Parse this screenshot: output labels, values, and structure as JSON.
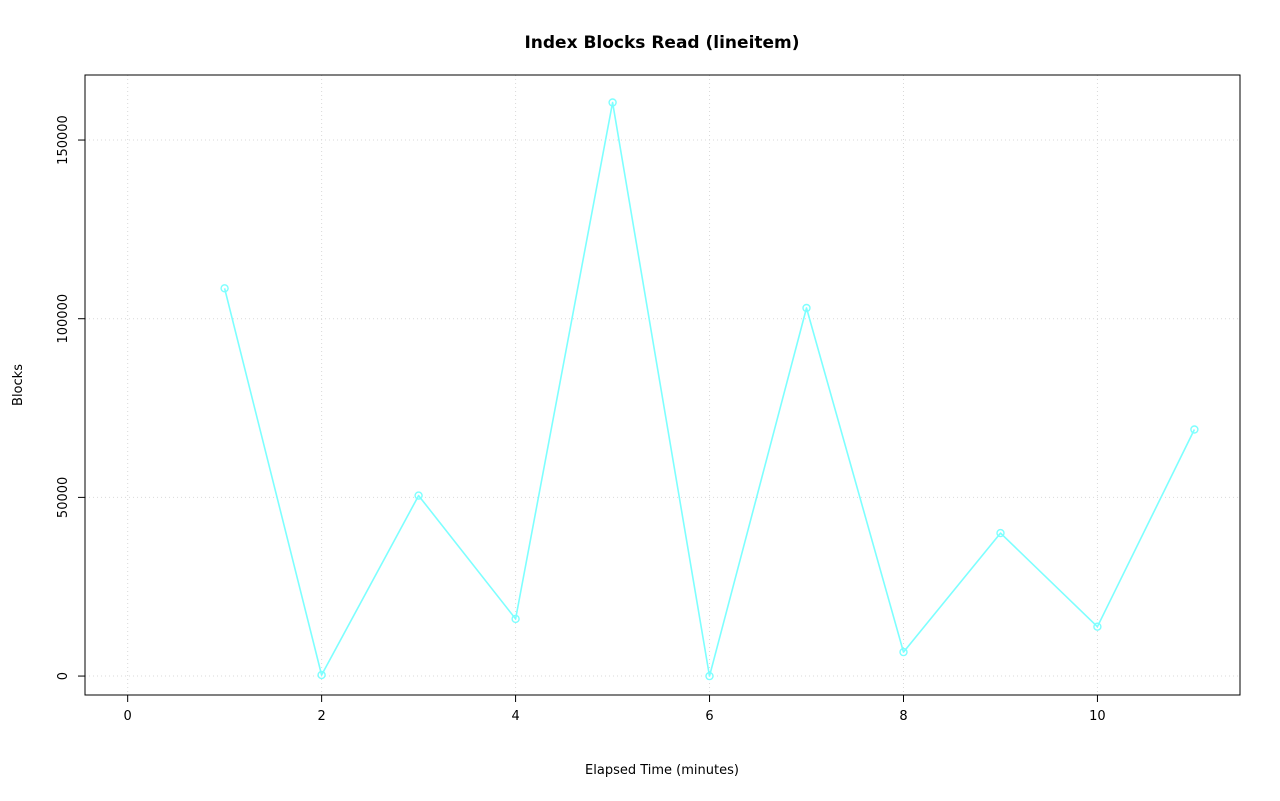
{
  "chart_data": {
    "type": "line",
    "title": "Index Blocks Read (lineitem)",
    "xlabel": "Elapsed Time (minutes)",
    "ylabel": "Blocks",
    "x": [
      1,
      2,
      3,
      4,
      5,
      6,
      7,
      8,
      9,
      10,
      11
    ],
    "y": [
      108500,
      300,
      50500,
      16000,
      160500,
      0,
      103000,
      6700,
      40000,
      13800,
      69000
    ],
    "x_ticks": [
      0,
      2,
      4,
      6,
      8,
      10
    ],
    "y_ticks": [
      0,
      50000,
      100000,
      150000
    ],
    "xlim": [
      -0.44,
      11.47
    ],
    "ylim": [
      -5300,
      168200
    ],
    "grid": true,
    "legend": null,
    "line_color": "#7DFFFF",
    "marker": "circle-open",
    "grid_color": "#d9d9d9",
    "axis_color": "#000000"
  }
}
